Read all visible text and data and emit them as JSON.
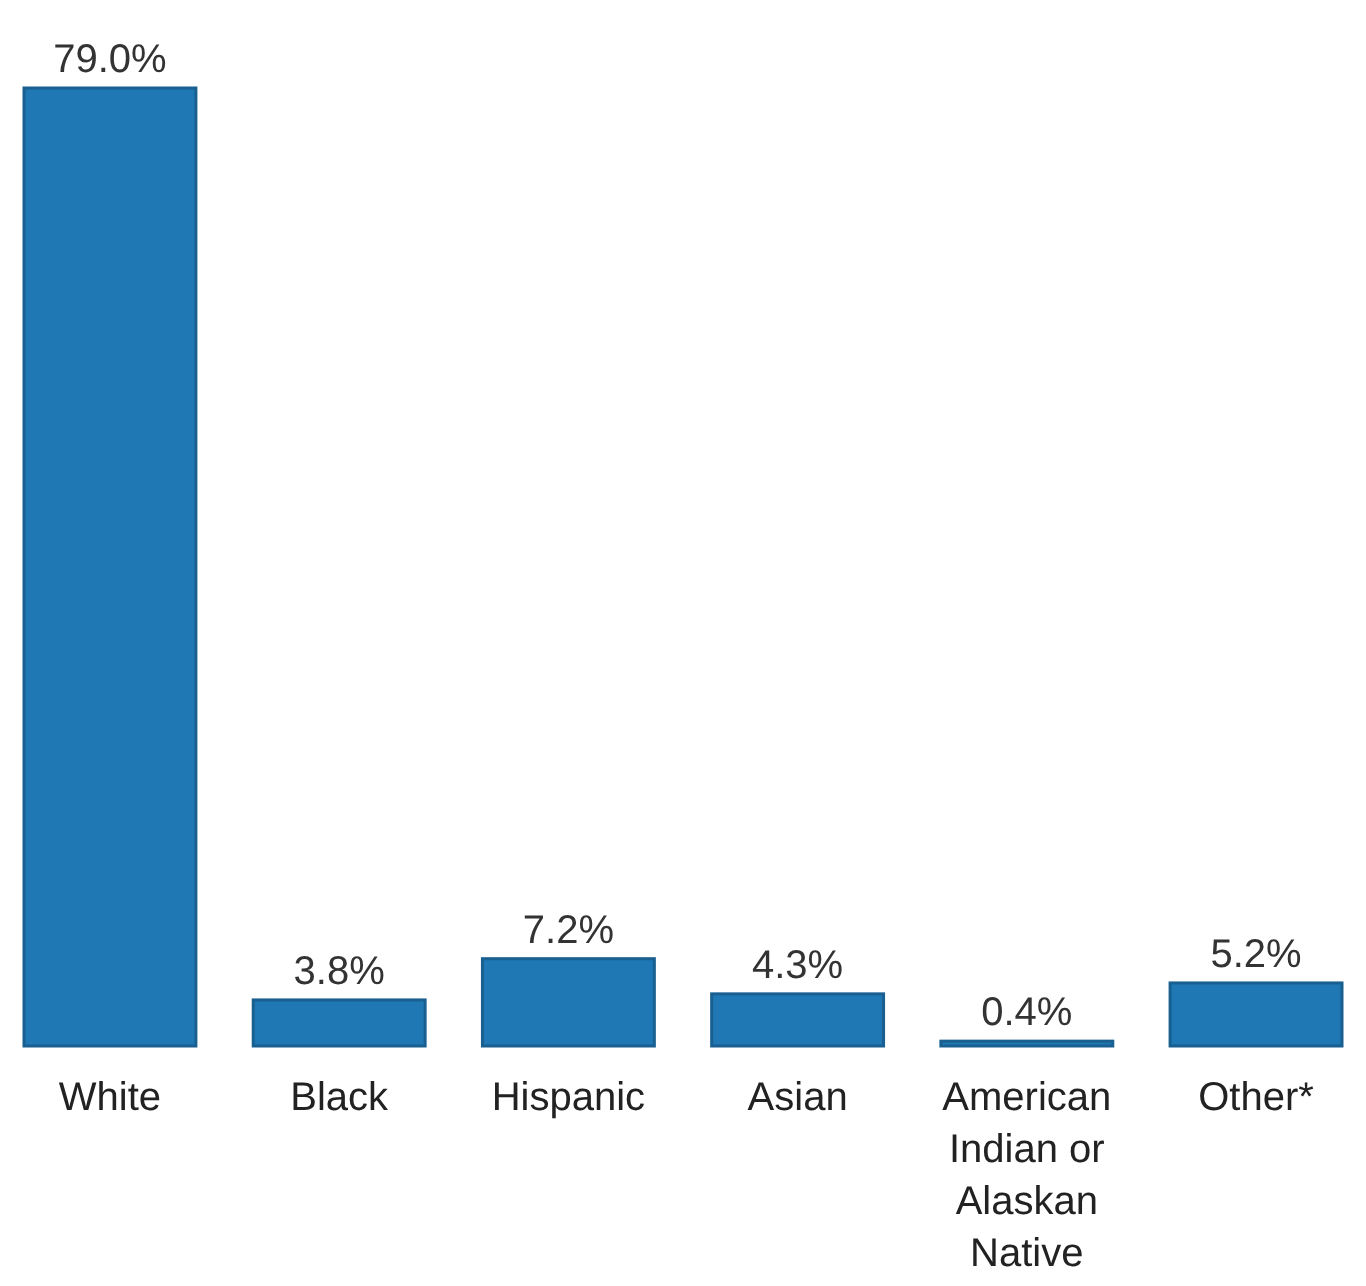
{
  "chart_data": {
    "type": "bar",
    "categories": [
      "White",
      "Black",
      "Hispanic",
      "Asian",
      "American Indian or Alaskan Native",
      "Other*"
    ],
    "values": [
      79.0,
      3.8,
      7.2,
      4.3,
      0.4,
      5.2
    ],
    "value_labels": [
      "79.0%",
      "3.8%",
      "7.2%",
      "4.3%",
      "0.4%",
      "5.2%"
    ],
    "color": "#1f77b4"
  }
}
